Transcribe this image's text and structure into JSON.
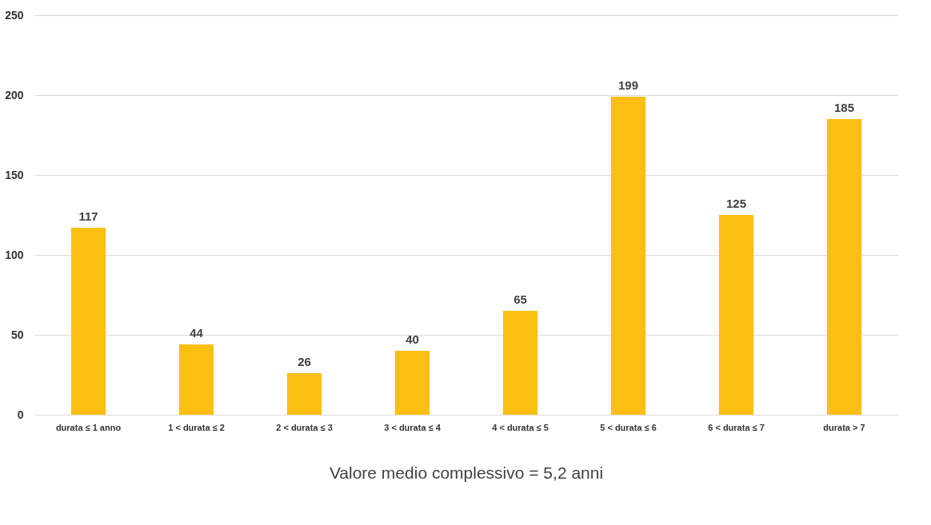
{
  "chart_data": {
    "type": "bar",
    "categories": [
      "durata ≤ 1 anno",
      "1 < durata ≤ 2",
      "2 < durata ≤ 3",
      "3 < durata ≤ 4",
      "4 < durata ≤ 5",
      "5 < durata ≤ 6",
      "6 < durata ≤ 7",
      "durata > 7"
    ],
    "values": [
      117,
      44,
      26,
      40,
      65,
      199,
      125,
      185
    ],
    "color": "#fbbf14",
    "ylim": [
      0,
      250
    ],
    "yticks": [
      0,
      50,
      100,
      150,
      200,
      250
    ],
    "grid": "y",
    "data_labels": true,
    "annotations": [
      "Valore medio complessivo = 5,2 anni"
    ]
  }
}
